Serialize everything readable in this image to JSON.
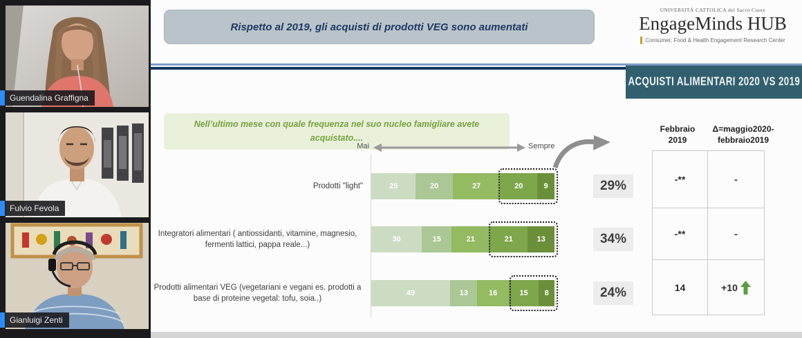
{
  "meeting": {
    "participants": [
      {
        "name": "Guendalina Graffigna"
      },
      {
        "name": "Fulvio Fevola"
      },
      {
        "name": "Gianluigi Zenti"
      }
    ],
    "accent_blue": "#2d8cff"
  },
  "slide": {
    "title": "Rispetto al 2019, gli acquisti di prodotti VEG sono aumentati",
    "logo": {
      "university": "UNIVERSITÀ CATTOLICA del Sacro Cuore",
      "brand": "EngageMinds HUB",
      "tagline": "Consumer, Food & Health Engagement Research Center"
    },
    "section_banner": "ACQUISTI ALIMENTARI 2020 VS 2019",
    "question": "Nell’ultimo mese con quale frequenza nel suo nucleo famigliare avete acquistato....",
    "table": {
      "headers": [
        {
          "line1": "Febbraio",
          "line2": "2019"
        },
        {
          "line1": "Δ=maggio2020-",
          "line2": "febbraio2019"
        }
      ],
      "rows": [
        {
          "febbraio_2019": "-**",
          "delta": "-"
        },
        {
          "febbraio_2019": "-**",
          "delta": "-"
        },
        {
          "febbraio_2019": "14",
          "delta": "+10",
          "delta_arrow": "up"
        }
      ]
    },
    "colors": {
      "teal_banner": "#315f6e",
      "navy_line": "#17365d",
      "light_blue_line": "#7f9dc9",
      "title_text": "#1f3864",
      "question_green": "#76a23e",
      "arrow_green": "#5a9e3f"
    }
  },
  "chart_data": {
    "type": "bar",
    "orientation": "horizontal_stacked",
    "title": "Rispetto al 2019, gli acquisti di prodotti VEG sono aumentati",
    "scale_labels": {
      "left": "Mai",
      "right": "Sempre"
    },
    "segment_colors": [
      "#ccdcc2",
      "#aac795",
      "#94ba62",
      "#7ea64b",
      "#6b8f39"
    ],
    "legend": "segments ordered from Mai (lightest) to Sempre (darkest); dotted box highlights top-2 frequency segments",
    "rows": [
      {
        "label": "Prodotti \"light\"",
        "values": [
          25,
          20,
          27,
          20,
          9
        ],
        "percent": "29%"
      },
      {
        "label": "Integratori alimentari ( antiossidanti, vitamine, magnesio, fermenti lattici, pappa reale...)",
        "values": [
          30,
          15,
          21,
          21,
          13
        ],
        "percent": "34%"
      },
      {
        "label": "Prodotti alimentari VEG (vegetariani e vegani es. prodotti a base di proteine vegetal: tofu, soia..)",
        "values": [
          49,
          13,
          16,
          15,
          8
        ],
        "percent": "24%"
      }
    ]
  }
}
